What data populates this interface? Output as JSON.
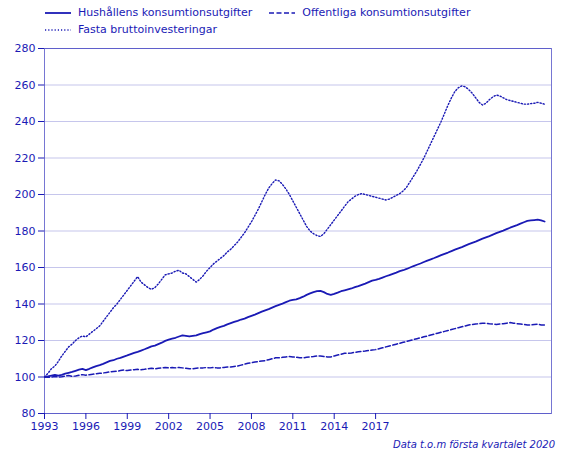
{
  "chart_data": {
    "type": "line",
    "subtitle": "Data t.o.m första kvartalet 2020",
    "color": "#1a1ab5",
    "grid": "y",
    "legend": "upper left",
    "xlim": [
      1993,
      2029.75
    ],
    "xticks": [
      1993,
      1996,
      1999,
      2002,
      2005,
      2008,
      2011,
      2014,
      2017
    ],
    "ylim": [
      80,
      280
    ],
    "yticks": [
      80,
      100,
      120,
      140,
      160,
      180,
      200,
      220,
      240,
      260,
      280
    ],
    "x": [
      1993,
      1993.25,
      1993.5,
      1993.75,
      1994,
      1994.25,
      1994.5,
      1994.75,
      1995,
      1995.25,
      1995.5,
      1995.75,
      1996,
      1996.25,
      1996.5,
      1996.75,
      1997,
      1997.25,
      1997.5,
      1997.75,
      1998,
      1998.25,
      1998.5,
      1998.75,
      1999,
      1999.25,
      1999.5,
      1999.75,
      2000,
      2000.25,
      2000.5,
      2000.75,
      2001,
      2001.25,
      2001.5,
      2001.75,
      2002,
      2002.25,
      2002.5,
      2002.75,
      2003,
      2003.25,
      2003.5,
      2003.75,
      2004,
      2004.25,
      2004.5,
      2004.75,
      2005,
      2005.25,
      2005.5,
      2005.75,
      2006,
      2006.25,
      2006.5,
      2006.75,
      2007,
      2007.25,
      2007.5,
      2007.75,
      2008,
      2008.25,
      2008.5,
      2008.75,
      2009,
      2009.25,
      2009.5,
      2009.75,
      2010,
      2010.25,
      2010.5,
      2010.75,
      2011,
      2011.25,
      2011.5,
      2011.75,
      2012,
      2012.25,
      2012.5,
      2012.75,
      2013,
      2013.25,
      2013.5,
      2013.75,
      2014,
      2014.25,
      2014.5,
      2014.75,
      2015,
      2015.25,
      2015.5,
      2015.75,
      2016,
      2016.25,
      2016.5,
      2016.75,
      2017,
      2017.25,
      2017.5,
      2017.75,
      2018,
      2018.25,
      2018.5,
      2018.75,
      2019,
      2019.25,
      2019.5,
      2019.75,
      2020,
      2020.25,
      2020.5,
      2020.75,
      2021,
      2021.25,
      2021.5,
      2021.75,
      2022,
      2022.25,
      2022.5,
      2022.75,
      2023,
      2023.25,
      2023.5,
      2023.75,
      2024,
      2024.25,
      2024.5,
      2024.75,
      2025,
      2025.25,
      2025.5,
      2025.75,
      2026,
      2026.25,
      2026.5,
      2026.75,
      2027,
      2027.25,
      2027.5,
      2027.75,
      2028,
      2028.25,
      2028.5,
      2028.75,
      2029,
      2029.25
    ],
    "series": [
      {
        "name": "Hushållens konsumtionsutgifter",
        "line_style": "solid",
        "values": [
          100.0,
          100.3,
          100.8,
          101.2,
          100.8,
          101.2,
          101.8,
          102.3,
          102.8,
          103.4,
          104.0,
          104.5,
          103.8,
          104.5,
          105.3,
          106.0,
          106.5,
          107.2,
          108.0,
          108.8,
          109.2,
          110.0,
          110.5,
          111.2,
          111.8,
          112.5,
          113.2,
          113.8,
          114.5,
          115.2,
          116.0,
          116.8,
          117.2,
          118.0,
          118.8,
          119.8,
          120.5,
          121.0,
          121.5,
          122.2,
          122.8,
          122.5,
          122.2,
          122.5,
          122.8,
          123.5,
          124.0,
          124.5,
          125.0,
          126.0,
          126.8,
          127.5,
          128.0,
          128.8,
          129.5,
          130.2,
          130.8,
          131.5,
          132.0,
          132.8,
          133.5,
          134.2,
          135.0,
          135.8,
          136.5,
          137.2,
          138.0,
          138.8,
          139.5,
          140.2,
          141.0,
          141.8,
          142.2,
          142.5,
          143.2,
          144.0,
          145.0,
          145.8,
          146.5,
          147.0,
          147.2,
          146.5,
          145.5,
          145.0,
          145.5,
          146.2,
          147.0,
          147.5,
          148.0,
          148.5,
          149.2,
          149.8,
          150.5,
          151.2,
          152.0,
          152.8,
          153.2,
          153.8,
          154.5,
          155.2,
          155.8,
          156.5,
          157.2,
          158.0,
          158.5,
          159.2,
          160.0,
          160.8,
          161.5,
          162.2,
          163.0,
          163.8,
          164.5,
          165.2,
          166.0,
          166.8,
          167.5,
          168.2,
          169.0,
          169.8,
          170.5,
          171.2,
          172.0,
          172.8,
          173.5,
          174.2,
          175.0,
          175.8,
          176.5,
          177.2,
          178.0,
          178.8,
          179.5,
          180.2,
          181.0,
          181.8,
          182.5,
          183.2,
          184.0,
          184.8,
          185.5,
          185.8,
          186.0,
          186.2,
          185.8,
          185.2
        ]
      },
      {
        "name": "Offentliga konsumtionsutgifter",
        "line_style": "dashed",
        "values": [
          100.0,
          99.8,
          100.0,
          100.3,
          100.0,
          100.2,
          100.5,
          100.8,
          100.3,
          100.6,
          101.0,
          101.3,
          101.0,
          101.2,
          101.5,
          101.8,
          102.0,
          102.2,
          102.5,
          102.8,
          103.0,
          103.2,
          103.5,
          103.8,
          103.5,
          103.8,
          104.0,
          104.2,
          104.0,
          104.2,
          104.5,
          104.8,
          104.5,
          104.8,
          105.0,
          105.2,
          105.0,
          105.2,
          105.0,
          105.2,
          105.0,
          104.8,
          104.5,
          104.5,
          104.8,
          105.0,
          105.0,
          105.2,
          105.0,
          105.2,
          105.0,
          105.0,
          105.2,
          105.5,
          105.5,
          105.8,
          106.0,
          106.5,
          107.0,
          107.5,
          107.8,
          108.2,
          108.5,
          108.8,
          109.0,
          109.5,
          110.0,
          110.5,
          110.5,
          110.8,
          111.0,
          111.2,
          111.0,
          110.8,
          110.5,
          110.5,
          110.8,
          111.0,
          111.2,
          111.5,
          111.5,
          111.2,
          111.0,
          111.0,
          111.5,
          112.0,
          112.5,
          113.0,
          113.0,
          113.2,
          113.5,
          113.8,
          114.0,
          114.2,
          114.5,
          114.8,
          115.0,
          115.5,
          116.0,
          116.5,
          117.0,
          117.5,
          118.0,
          118.5,
          119.0,
          119.5,
          120.0,
          120.5,
          121.0,
          121.5,
          122.0,
          122.5,
          123.0,
          123.5,
          124.0,
          124.5,
          125.0,
          125.5,
          126.0,
          126.5,
          127.0,
          127.5,
          128.0,
          128.5,
          128.8,
          129.0,
          129.2,
          129.5,
          129.5,
          129.2,
          129.0,
          128.8,
          129.0,
          129.2,
          129.5,
          129.8,
          129.5,
          129.2,
          129.0,
          128.8,
          128.5,
          128.5,
          128.8,
          129.0,
          128.5,
          128.5
        ]
      },
      {
        "name": "Fasta bruttoinvesteringar",
        "line_style": "dotted",
        "values": [
          100.0,
          102.0,
          104.5,
          106.0,
          108.5,
          111.5,
          114.0,
          116.5,
          118.0,
          120.0,
          121.5,
          122.5,
          122.0,
          123.5,
          125.0,
          126.5,
          128.0,
          130.5,
          133.0,
          135.5,
          138.0,
          140.0,
          142.5,
          145.0,
          147.5,
          150.0,
          152.5,
          155.0,
          152.0,
          150.5,
          149.0,
          148.0,
          149.0,
          151.0,
          153.5,
          156.0,
          156.5,
          157.0,
          158.0,
          158.5,
          157.0,
          156.5,
          155.0,
          153.5,
          152.0,
          153.5,
          155.5,
          158.0,
          160.0,
          162.0,
          163.5,
          165.0,
          166.5,
          168.5,
          170.0,
          172.0,
          174.0,
          176.5,
          179.0,
          182.0,
          185.0,
          188.5,
          192.0,
          196.0,
          200.0,
          203.5,
          206.0,
          208.0,
          207.5,
          205.5,
          203.0,
          200.0,
          196.5,
          193.0,
          189.5,
          186.0,
          182.5,
          180.0,
          178.5,
          177.5,
          177.0,
          178.5,
          181.0,
          183.5,
          186.0,
          188.5,
          191.0,
          193.5,
          196.0,
          197.5,
          199.0,
          200.0,
          200.5,
          200.0,
          199.5,
          199.0,
          198.5,
          198.0,
          197.5,
          197.0,
          197.5,
          198.5,
          199.5,
          200.5,
          202.0,
          204.0,
          207.0,
          210.0,
          213.0,
          216.5,
          220.0,
          224.0,
          228.0,
          232.0,
          236.0,
          240.0,
          244.5,
          249.0,
          253.0,
          256.5,
          258.5,
          259.5,
          259.0,
          257.5,
          255.5,
          253.0,
          250.5,
          249.0,
          250.0,
          252.0,
          253.5,
          254.5,
          254.0,
          253.0,
          252.0,
          251.5,
          251.0,
          250.5,
          250.0,
          249.5,
          249.5,
          249.8,
          250.0,
          250.5,
          250.0,
          249.5
        ]
      }
    ]
  }
}
